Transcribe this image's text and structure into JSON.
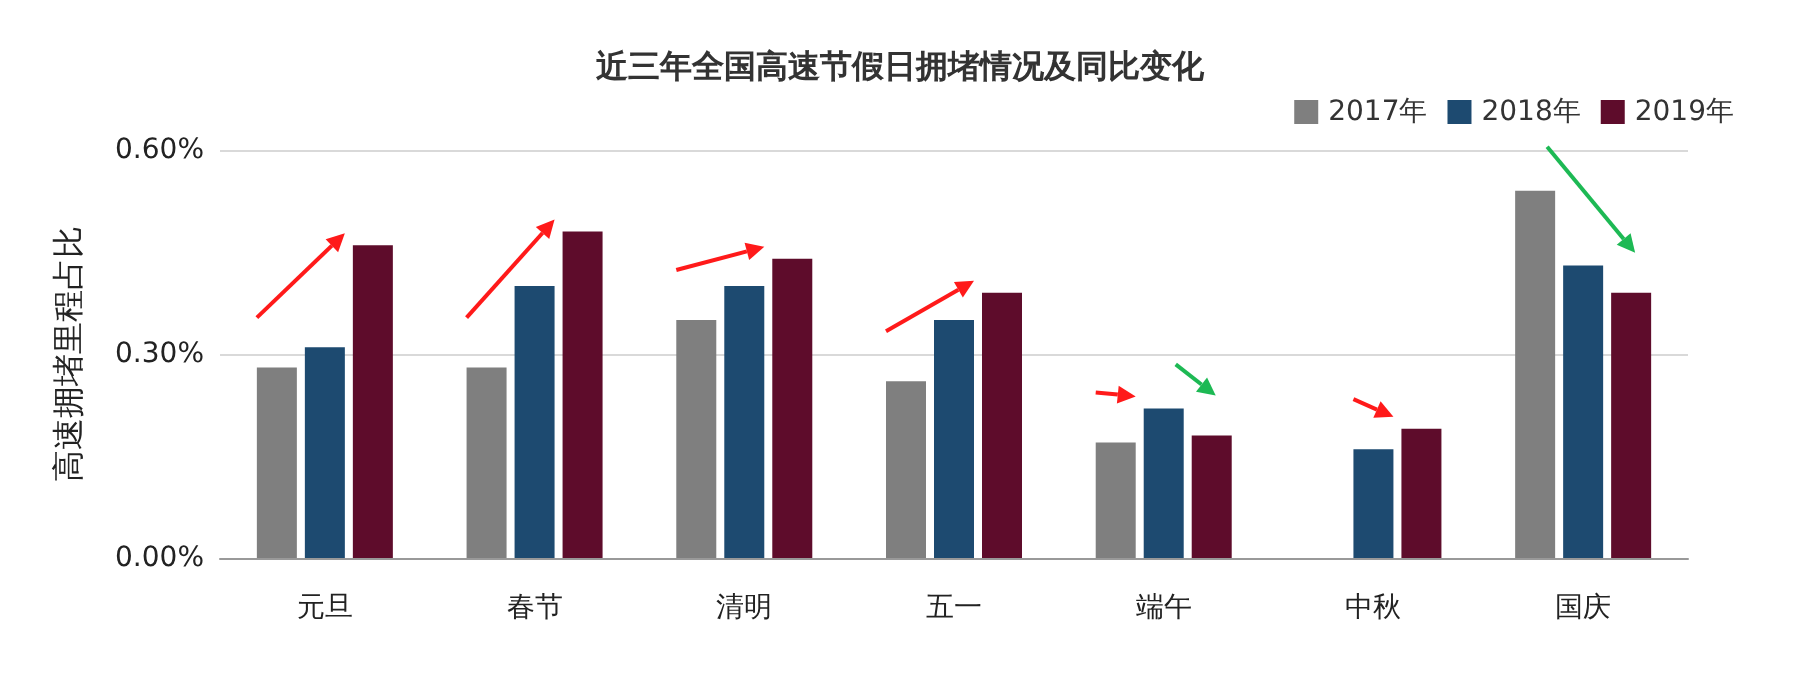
{
  "chart_data": {
    "type": "bar",
    "title": "近三年全国高速节假日拥堵情况及同比变化",
    "ylabel": "高速拥堵里程占比",
    "categories": [
      "元旦",
      "春节",
      "清明",
      "五一",
      "端午",
      "中秋",
      "国庆"
    ],
    "series": [
      {
        "name": "2017年",
        "color": "#7f7f7f",
        "values": [
          0.28,
          0.28,
          0.35,
          0.26,
          0.17,
          null,
          0.54
        ]
      },
      {
        "name": "2018年",
        "color": "#1d4a70",
        "values": [
          0.31,
          0.4,
          0.4,
          0.35,
          0.22,
          0.16,
          0.43
        ]
      },
      {
        "name": "2019年",
        "color": "#5e0c2b",
        "values": [
          0.46,
          0.48,
          0.44,
          0.39,
          0.18,
          0.19,
          0.39
        ]
      }
    ],
    "ylim": [
      0,
      0.6
    ],
    "yticks": [
      {
        "value": 0,
        "label": "0.00%"
      },
      {
        "value": 0.3,
        "label": "0.30%"
      },
      {
        "value": 0.6,
        "label": "0.60%"
      }
    ],
    "grid": "y",
    "legend": "top right"
  }
}
